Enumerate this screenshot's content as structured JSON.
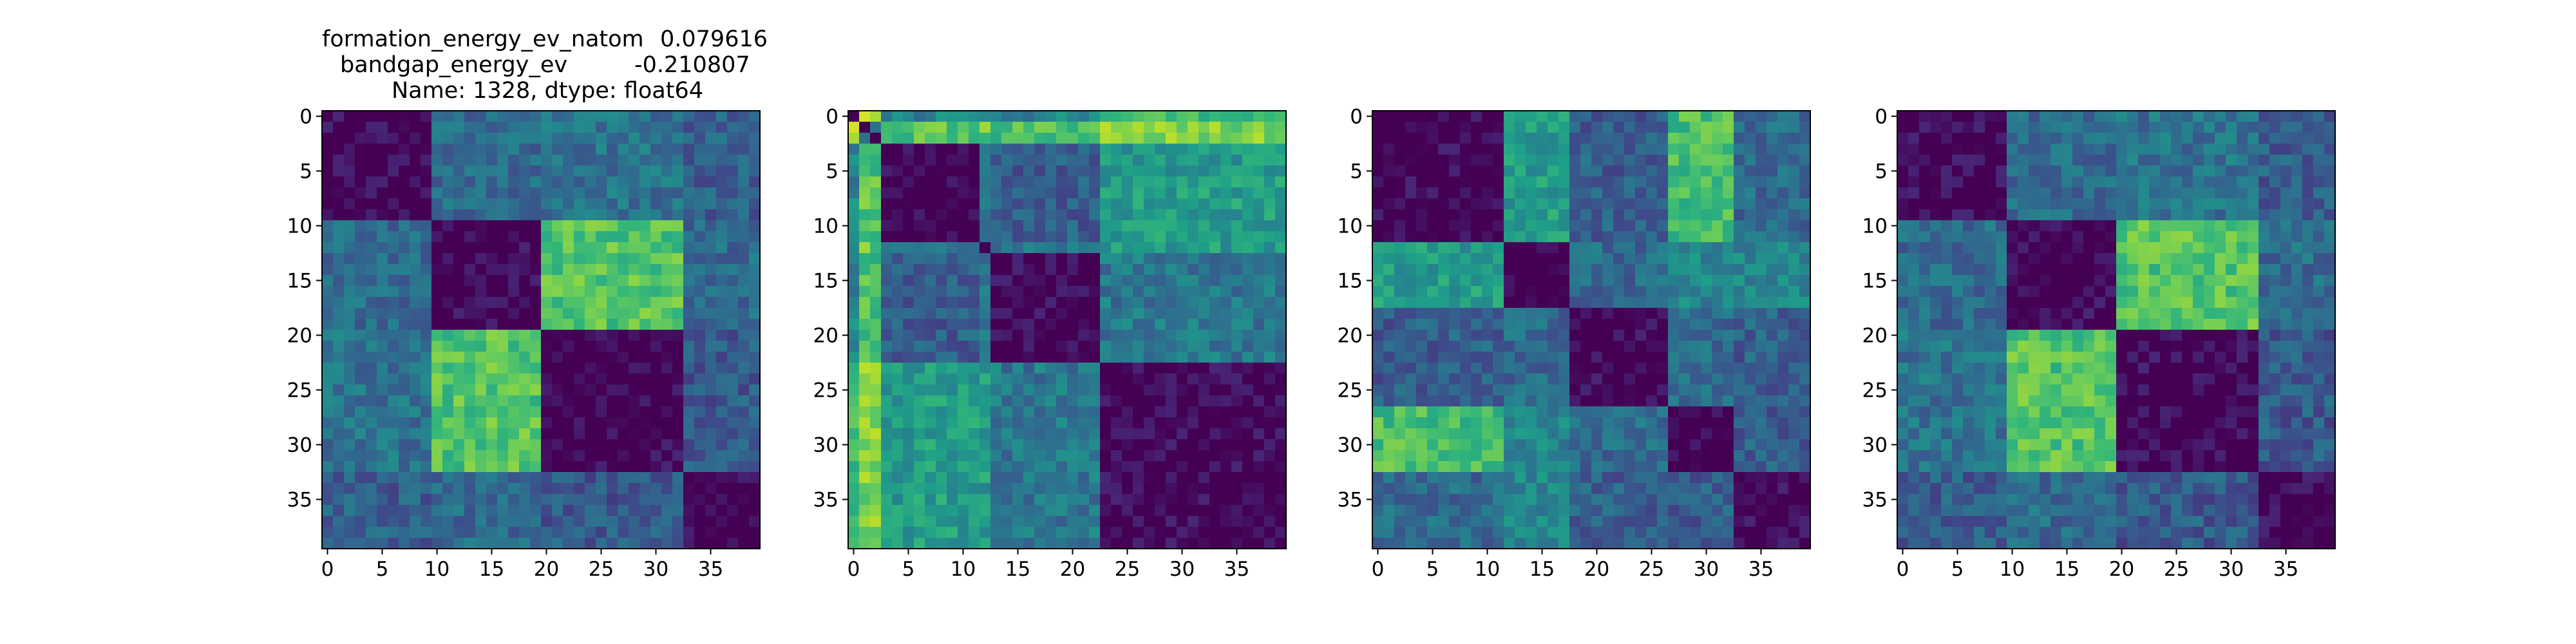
{
  "title": {
    "row1_key": "formation_energy_ev_natom",
    "row1_value": "0.079616",
    "row2_key": "bandgap_energy_ev",
    "row2_value": "-0.210807",
    "row3": "Name: 1328, dtype: float64"
  },
  "colormap": "viridis",
  "chart_data": [
    {
      "type": "heatmap",
      "size": 40,
      "xticks": [
        0,
        5,
        10,
        15,
        20,
        25,
        30,
        35
      ],
      "yticks": [
        0,
        5,
        10,
        15,
        20,
        25,
        30,
        35
      ],
      "blocks": [
        [
          0,
          10
        ],
        [
          10,
          20
        ],
        [
          20,
          33
        ],
        [
          33,
          40
        ]
      ],
      "block_means": [
        [
          0.0,
          0.35,
          0.38,
          0.3
        ],
        [
          0.35,
          0.0,
          0.72,
          0.35
        ],
        [
          0.38,
          0.72,
          0.0,
          0.28
        ],
        [
          0.3,
          0.35,
          0.28,
          0.0
        ]
      ],
      "vrange": [
        0,
        1
      ]
    },
    {
      "type": "heatmap",
      "size": 40,
      "xticks": [
        0,
        5,
        10,
        15,
        20,
        25,
        30,
        35
      ],
      "yticks": [
        0,
        5,
        10,
        15,
        20,
        25,
        30,
        35
      ],
      "blocks": [
        [
          0,
          1
        ],
        [
          1,
          3
        ],
        [
          3,
          12
        ],
        [
          12,
          13
        ],
        [
          13,
          23
        ],
        [
          23,
          40
        ]
      ],
      "block_means": [
        [
          0.0,
          0.85,
          0.45,
          0.5,
          0.45,
          0.65
        ],
        [
          0.85,
          0.4,
          0.72,
          0.75,
          0.7,
          0.8
        ],
        [
          0.45,
          0.72,
          0.0,
          0.4,
          0.3,
          0.55
        ],
        [
          0.5,
          0.75,
          0.4,
          0.0,
          0.4,
          0.55
        ],
        [
          0.45,
          0.7,
          0.3,
          0.4,
          0.0,
          0.4
        ],
        [
          0.65,
          0.8,
          0.55,
          0.55,
          0.4,
          0.0
        ]
      ],
      "vrange": [
        0,
        1
      ]
    },
    {
      "type": "heatmap",
      "size": 40,
      "xticks": [
        0,
        5,
        10,
        15,
        20,
        25,
        30,
        35
      ],
      "yticks": [
        0,
        5,
        10,
        15,
        20,
        25,
        30,
        35
      ],
      "blocks": [
        [
          0,
          12
        ],
        [
          12,
          18
        ],
        [
          18,
          27
        ],
        [
          27,
          33
        ],
        [
          33,
          40
        ]
      ],
      "block_means": [
        [
          0.0,
          0.55,
          0.3,
          0.7,
          0.35
        ],
        [
          0.55,
          0.0,
          0.35,
          0.45,
          0.45
        ],
        [
          0.3,
          0.35,
          0.0,
          0.35,
          0.3
        ],
        [
          0.7,
          0.45,
          0.35,
          0.0,
          0.3
        ],
        [
          0.35,
          0.45,
          0.3,
          0.3,
          0.0
        ]
      ],
      "vrange": [
        0,
        1
      ]
    },
    {
      "type": "heatmap",
      "size": 40,
      "xticks": [
        0,
        5,
        10,
        15,
        20,
        25,
        30,
        35
      ],
      "yticks": [
        0,
        5,
        10,
        15,
        20,
        25,
        30,
        35
      ],
      "blocks": [
        [
          0,
          10
        ],
        [
          10,
          20
        ],
        [
          20,
          33
        ],
        [
          33,
          40
        ]
      ],
      "block_means": [
        [
          0.0,
          0.35,
          0.38,
          0.3
        ],
        [
          0.35,
          0.0,
          0.72,
          0.35
        ],
        [
          0.38,
          0.72,
          0.0,
          0.28
        ],
        [
          0.3,
          0.35,
          0.28,
          0.0
        ]
      ],
      "vrange": [
        0,
        1
      ]
    }
  ]
}
